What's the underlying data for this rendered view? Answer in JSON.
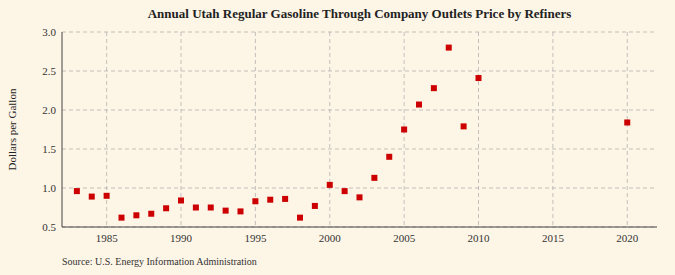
{
  "chart_data": {
    "type": "scatter",
    "title": "Annual Utah Regular Gasoline Through Company Outlets Price by Refiners",
    "ylabel": "Dollars per Gallon",
    "annotations": [
      "Source: U.S. Energy Information Administration"
    ],
    "x": [
      1983,
      1984,
      1985,
      1986,
      1987,
      1988,
      1989,
      1990,
      1991,
      1992,
      1993,
      1994,
      1995,
      1996,
      1997,
      1998,
      1999,
      2000,
      2001,
      2002,
      2003,
      2004,
      2005,
      2006,
      2007,
      2008,
      2009,
      2010,
      2020
    ],
    "values": [
      0.96,
      0.89,
      0.9,
      0.62,
      0.65,
      0.67,
      0.74,
      0.84,
      0.75,
      0.75,
      0.71,
      0.7,
      0.83,
      0.85,
      0.86,
      0.62,
      0.77,
      1.04,
      0.96,
      0.88,
      1.13,
      1.4,
      1.75,
      2.07,
      2.28,
      2.8,
      1.79,
      2.41,
      1.84
    ],
    "color": "#cc0000",
    "marker": "square",
    "xlim": [
      1982,
      2022
    ],
    "ylim": [
      0.5,
      3.0
    ],
    "xticks": [
      1985,
      1990,
      1995,
      2000,
      2005,
      2010,
      2015,
      2020
    ],
    "yticks": [
      0.5,
      {
        "value": 1.0,
        "label": "1.0"
      },
      1.5,
      {
        "value": 2.0,
        "label": "2.0"
      },
      2.5,
      {
        "value": 3.0,
        "label": "3.0"
      }
    ],
    "grid": true
  }
}
